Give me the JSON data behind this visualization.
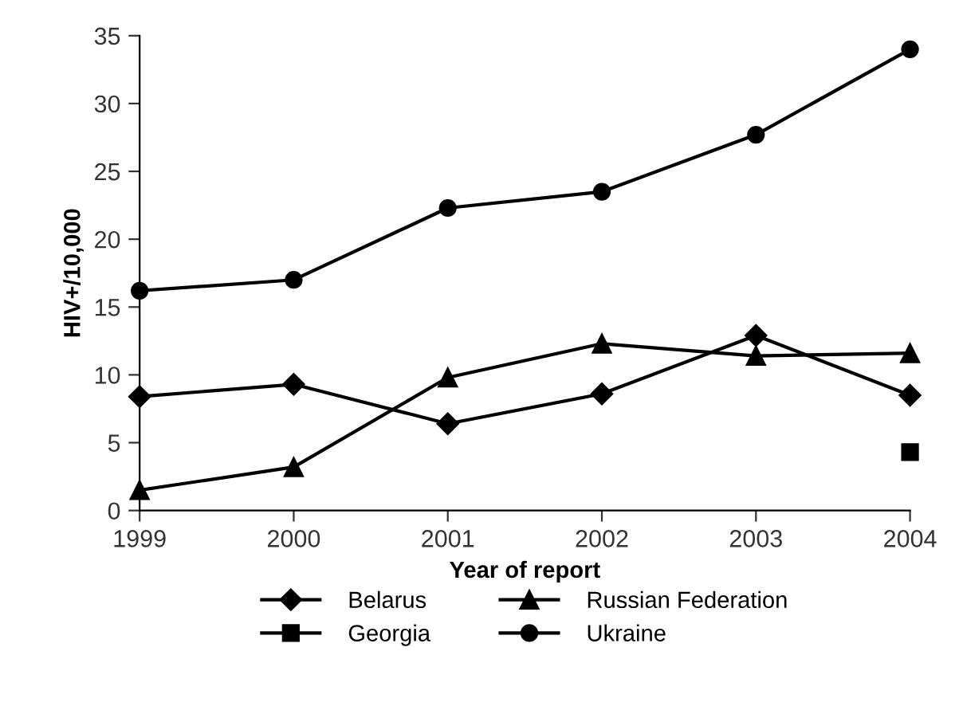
{
  "chart_data": {
    "type": "line",
    "xlabel": "Year of report",
    "ylabel": "HIV+/10,000",
    "x": [
      1999,
      2000,
      2001,
      2002,
      2003,
      2004
    ],
    "series": [
      {
        "name": "Belarus",
        "color": "#000000",
        "marker": "diamond",
        "values": [
          8.4,
          9.3,
          6.4,
          8.6,
          12.9,
          8.5
        ]
      },
      {
        "name": "Georgia",
        "color": "#000000",
        "marker": "square",
        "values": [
          null,
          null,
          null,
          null,
          null,
          4.3
        ]
      },
      {
        "name": "Russian Federation",
        "color": "#000000",
        "marker": "triangle",
        "values": [
          1.5,
          3.2,
          9.8,
          12.3,
          11.4,
          11.6
        ]
      },
      {
        "name": "Ukraine",
        "color": "#000000",
        "marker": "circle",
        "values": [
          16.2,
          17.0,
          22.3,
          23.5,
          27.7,
          34.0
        ]
      }
    ],
    "xlim": [
      1999,
      2004
    ],
    "xticks": [
      1999,
      2000,
      2001,
      2002,
      2003,
      2004
    ],
    "ylim": [
      0,
      35
    ],
    "yticks": [
      0,
      5,
      10,
      15,
      20,
      25,
      30,
      35
    ],
    "grid": false,
    "legend": "bottom",
    "line_style": "solid"
  }
}
